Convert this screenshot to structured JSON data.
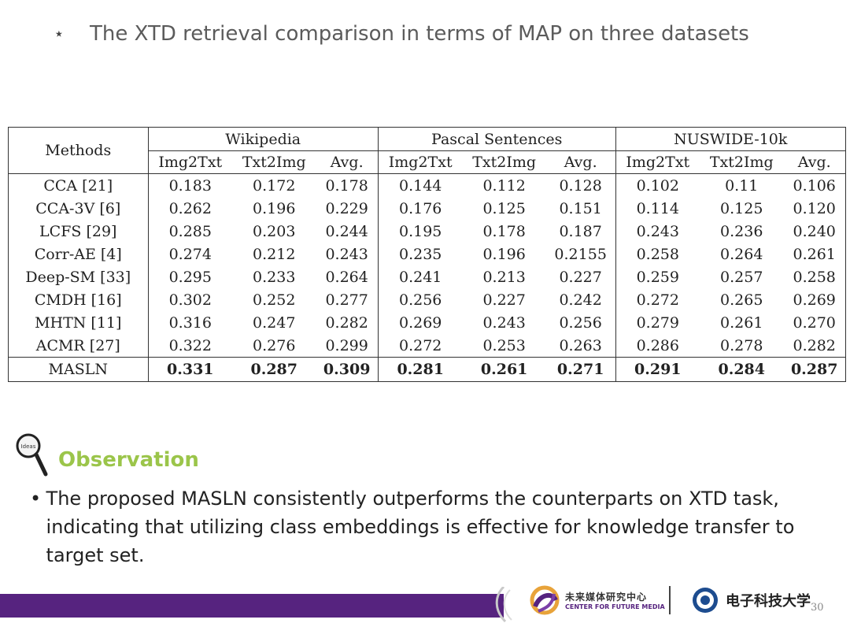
{
  "slide": {
    "bullet_symbol": "⋆",
    "heading": "The XTD retrieval comparison in terms of MAP on three datasets",
    "page_number": "30"
  },
  "table": {
    "methods_header": "Methods",
    "datasets": [
      "Wikipedia",
      "Pascal Sentences",
      "NUSWIDE-10k"
    ],
    "subheaders": [
      "Img2Txt",
      "Txt2Img",
      "Avg."
    ],
    "rows": [
      {
        "method": "CCA [21]",
        "values": [
          "0.183",
          "0.172",
          "0.178",
          "0.144",
          "0.112",
          "0.128",
          "0.102",
          "0.11",
          "0.106"
        ]
      },
      {
        "method": "CCA-3V [6]",
        "values": [
          "0.262",
          "0.196",
          "0.229",
          "0.176",
          "0.125",
          "0.151",
          "0.114",
          "0.125",
          "0.120"
        ]
      },
      {
        "method": "LCFS [29]",
        "values": [
          "0.285",
          "0.203",
          "0.244",
          "0.195",
          "0.178",
          "0.187",
          "0.243",
          "0.236",
          "0.240"
        ]
      },
      {
        "method": "Corr-AE [4]",
        "values": [
          "0.274",
          "0.212",
          "0.243",
          "0.235",
          "0.196",
          "0.2155",
          "0.258",
          "0.264",
          "0.261"
        ]
      },
      {
        "method": "Deep-SM [33]",
        "values": [
          "0.295",
          "0.233",
          "0.264",
          "0.241",
          "0.213",
          "0.227",
          "0.259",
          "0.257",
          "0.258"
        ]
      },
      {
        "method": "CMDH [16]",
        "values": [
          "0.302",
          "0.252",
          "0.277",
          "0.256",
          "0.227",
          "0.242",
          "0.272",
          "0.265",
          "0.269"
        ]
      },
      {
        "method": "MHTN [11]",
        "values": [
          "0.316",
          "0.247",
          "0.282",
          "0.269",
          "0.243",
          "0.256",
          "0.279",
          "0.261",
          "0.270"
        ]
      },
      {
        "method": "ACMR [27]",
        "values": [
          "0.322",
          "0.276",
          "0.299",
          "0.272",
          "0.253",
          "0.263",
          "0.286",
          "0.278",
          "0.282"
        ]
      }
    ],
    "ours": {
      "method": "MASLN",
      "values": [
        "0.331",
        "0.287",
        "0.309",
        "0.281",
        "0.261",
        "0.271",
        "0.291",
        "0.284",
        "0.287"
      ]
    }
  },
  "observation": {
    "title": "Observation",
    "icon_label": "Ideas",
    "bullet_symbol": "•",
    "text": "The proposed MASLN consistently outperforms the counterparts on XTD task, indicating that utilizing class embeddings is effective for knowledge transfer to target set."
  },
  "footer": {
    "logo1_cn": "未来媒体研究中心",
    "logo1_en": "CENTER FOR FUTURE MEDIA",
    "logo2_cn": "电子科技大学"
  },
  "colors": {
    "accent_green": "#9bc54a",
    "footer_purple": "#56237f"
  }
}
